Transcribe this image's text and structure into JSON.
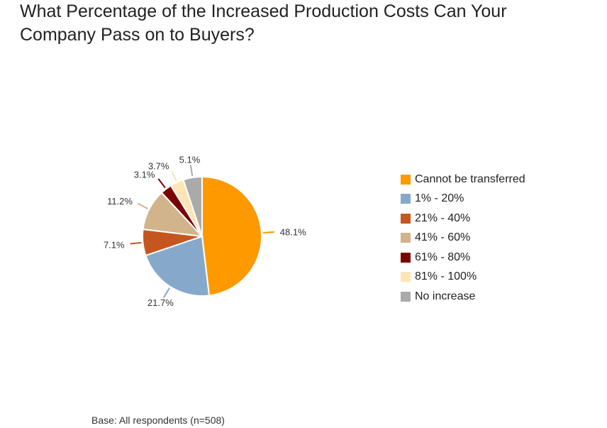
{
  "chart_data": {
    "type": "pie",
    "title": "What Percentage of the Increased Production Costs Can Your Company Pass on to Buyers?",
    "footnote": "Base: All respondents (n=508)",
    "legend_position": "right",
    "slices": [
      {
        "label": "Cannot be transferred",
        "value": 48.1,
        "display": "48.1%",
        "color": "#FF9900"
      },
      {
        "label": "1% - 20%",
        "value": 21.7,
        "display": "21.7%",
        "color": "#86A9CB"
      },
      {
        "label": "21% - 40%",
        "value": 7.1,
        "display": "7.1%",
        "color": "#C5561F"
      },
      {
        "label": "41% - 60%",
        "value": 11.2,
        "display": "11.2%",
        "color": "#D2B48C"
      },
      {
        "label": "61% - 80%",
        "value": 3.1,
        "display": "3.1%",
        "color": "#7B0000"
      },
      {
        "label": "81% - 100%",
        "value": 3.7,
        "display": "3.7%",
        "color": "#FFE4B5"
      },
      {
        "label": "No increase",
        "value": 5.1,
        "display": "5.1%",
        "color": "#AAAAAA"
      }
    ]
  }
}
